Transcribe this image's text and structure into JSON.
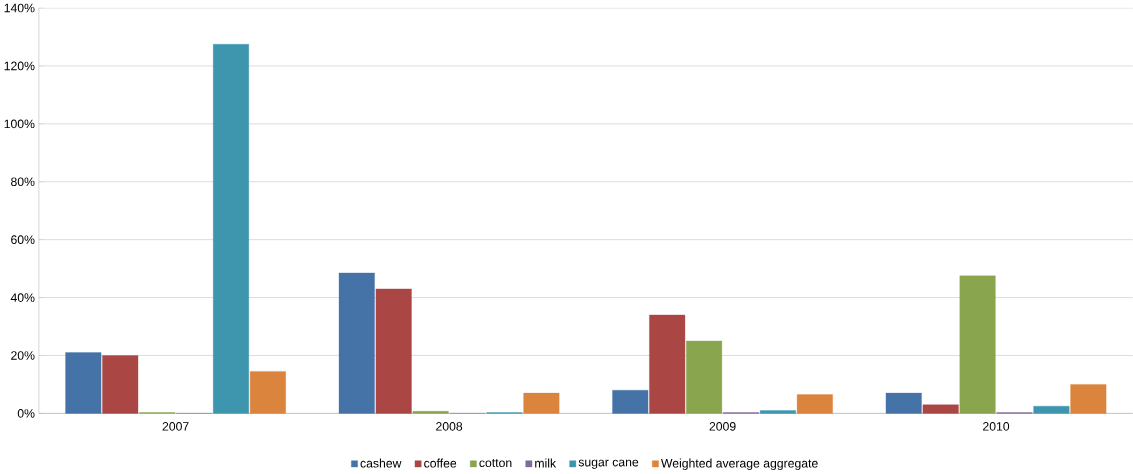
{
  "chart_data": {
    "type": "bar",
    "categories": [
      "2007",
      "2008",
      "2009",
      "2010"
    ],
    "series": [
      {
        "name": "cashew",
        "color": "#4572a7",
        "values": [
          21,
          48.5,
          8,
          7
        ]
      },
      {
        "name": "coffee",
        "color": "#aa4643",
        "values": [
          20,
          43,
          34,
          3
        ]
      },
      {
        "name": "cotton",
        "color": "#89a54e",
        "values": [
          0.3,
          0.7,
          25,
          47.5
        ]
      },
      {
        "name": "milk",
        "color": "#80699b",
        "values": [
          0,
          0,
          0.3,
          0.3
        ]
      },
      {
        "name": "sugar cane",
        "color": "#3d96ae",
        "values": [
          127.5,
          0.3,
          1,
          2.5
        ]
      },
      {
        "name": "Weighted average aggregate",
        "color": "#db843d",
        "values": [
          14.5,
          7,
          6.5,
          10
        ]
      }
    ],
    "ylim": [
      0,
      140
    ],
    "yticks": [
      {
        "value": 0,
        "label": "0%"
      },
      {
        "value": 20,
        "label": "20%"
      },
      {
        "value": 40,
        "label": "40%"
      },
      {
        "value": 60,
        "label": "60%"
      },
      {
        "value": 80,
        "label": "80%"
      },
      {
        "value": 100,
        "label": "100%"
      },
      {
        "value": 120,
        "label": "120%"
      },
      {
        "value": 140,
        "label": "140%"
      }
    ],
    "grid": "y",
    "legend": "bottom"
  }
}
